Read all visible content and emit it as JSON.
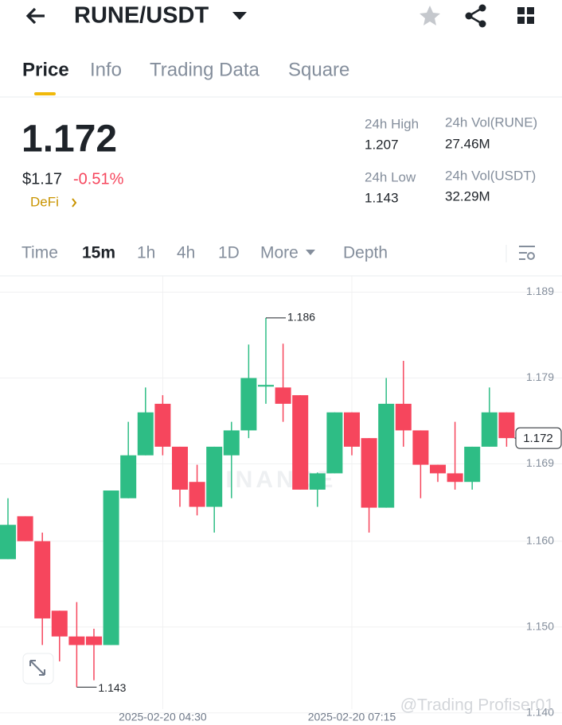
{
  "header": {
    "title": "RUNE/USDT"
  },
  "tabs": [
    "Price",
    "Info",
    "Trading Data",
    "Square"
  ],
  "summary": {
    "last_price": "1.172",
    "usd_price": "$1.17",
    "change": "-0.51%",
    "tag": "DeFi"
  },
  "stats": [
    {
      "label": "24h High",
      "value": "1.207"
    },
    {
      "label": "24h Low",
      "value": "1.143"
    },
    {
      "label": "24h Vol(RUNE)",
      "value": "27.46M"
    },
    {
      "label": "24h Vol(USDT)",
      "value": "32.29M"
    }
  ],
  "intervals": [
    "Time",
    "15m",
    "1h",
    "4h",
    "1D",
    "More",
    "Depth"
  ],
  "chart_data": {
    "type": "candlestick",
    "categories": [
      null,
      null,
      null,
      null,
      null,
      null,
      null,
      null,
      null,
      "2025-02-20 04:30",
      null,
      null,
      null,
      null,
      null,
      null,
      null,
      null,
      null,
      null,
      "2025-02-20 07:15",
      null,
      null,
      null,
      null,
      null,
      null,
      null,
      null,
      null
    ],
    "open": [
      1.1579,
      1.1629,
      1.16,
      1.1519,
      1.1489,
      1.1489,
      1.1479,
      1.165,
      1.17,
      1.176,
      1.171,
      1.1669,
      1.164,
      1.17,
      1.1729,
      1.178,
      1.1779,
      1.177,
      1.166,
      1.1679,
      1.175,
      1.172,
      1.1639,
      1.176,
      1.1729,
      1.1689,
      1.1679,
      1.1669,
      1.171,
      1.175
    ],
    "high": [
      1.165,
      1.1629,
      1.161,
      1.1519,
      1.1529,
      1.1498,
      1.1659,
      1.1739,
      1.1779,
      1.177,
      1.171,
      1.1689,
      1.171,
      1.1739,
      1.1829,
      1.186,
      1.183,
      1.177,
      1.168,
      1.175,
      1.175,
      1.172,
      1.179,
      1.181,
      1.1729,
      1.1689,
      1.1739,
      1.171,
      1.1779,
      1.175
    ],
    "low": [
      1.1579,
      1.16,
      1.1479,
      1.146,
      1.143,
      1.1438,
      1.1479,
      1.165,
      1.17,
      1.17,
      1.164,
      1.163,
      1.161,
      1.165,
      1.172,
      1.176,
      1.1739,
      1.166,
      1.164,
      1.1679,
      1.17,
      1.161,
      1.1639,
      1.171,
      1.165,
      1.1669,
      1.166,
      1.166,
      1.171,
      1.171
    ],
    "close": [
      1.1619,
      1.16,
      1.151,
      1.1489,
      1.1479,
      1.1479,
      1.1659,
      1.17,
      1.175,
      1.171,
      1.166,
      1.164,
      1.171,
      1.1729,
      1.179,
      1.1782,
      1.176,
      1.166,
      1.1679,
      1.175,
      1.171,
      1.1639,
      1.176,
      1.1729,
      1.1689,
      1.1679,
      1.1669,
      1.171,
      1.175,
      1.172
    ],
    "up_color": "#2ebd85",
    "down_color": "#f6465d",
    "ylim": [
      1.1397,
      1.1909
    ],
    "yticks": [
      1.189,
      1.179,
      1.169,
      {
        "value": 1.16,
        "label": "1.160"
      },
      {
        "value": 1.15,
        "label": "1.150"
      },
      {
        "value": 1.14,
        "label": "1.140"
      }
    ],
    "grid": true,
    "watermark": "BINANCE",
    "max_label": "1.186",
    "min_label": "1.143",
    "last_price_label": "1.172"
  },
  "footer_watermark": "@Trading Profiser01"
}
